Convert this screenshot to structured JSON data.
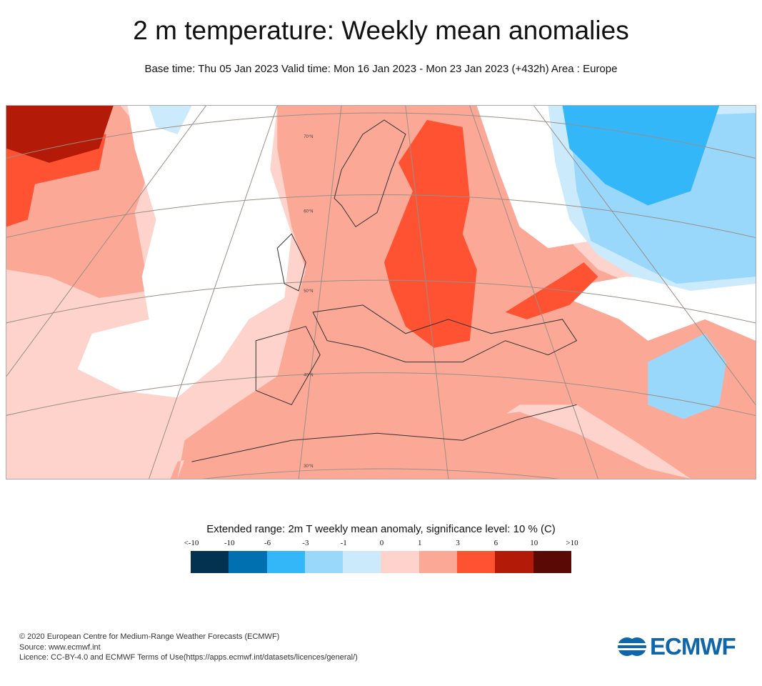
{
  "title": "2 m temperature: Weekly mean anomalies",
  "subtitle": "Base time: Thu 05 Jan 2023 Valid time: Mon 16 Jan 2023 - Mon 23 Jan 2023 (+432h) Area : Europe",
  "map": {
    "area": "Europe",
    "latitude_labels": [
      "70°N",
      "60°N",
      "50°N",
      "40°N",
      "30°N"
    ]
  },
  "legend": {
    "title": "Extended range: 2m T weekly mean anomaly, significance level: 10 % (C)",
    "ticks": [
      "<-10",
      "-10",
      "-6",
      "-3",
      "-1",
      "0",
      "1",
      "3",
      "6",
      "10",
      ">10"
    ],
    "colors": [
      "#02324f",
      "#0070b0",
      "#33b7f9",
      "#99d8fb",
      "#cbeafb",
      "#fdd3cb",
      "#fca896",
      "#fe5232",
      "#b31a07",
      "#5a0904"
    ]
  },
  "footer": {
    "copyright": "© 2020 European Centre for Medium-Range Weather Forecasts (ECMWF)",
    "source": "Source: www.ecmwf.int",
    "licence": "Licence: CC-BY-4.0 and ECMWF Terms of Use(https://apps.ecmwf.int/datasets/licences/general/)"
  },
  "logo": {
    "text": "ECMWF",
    "color": "#0f66a8"
  }
}
